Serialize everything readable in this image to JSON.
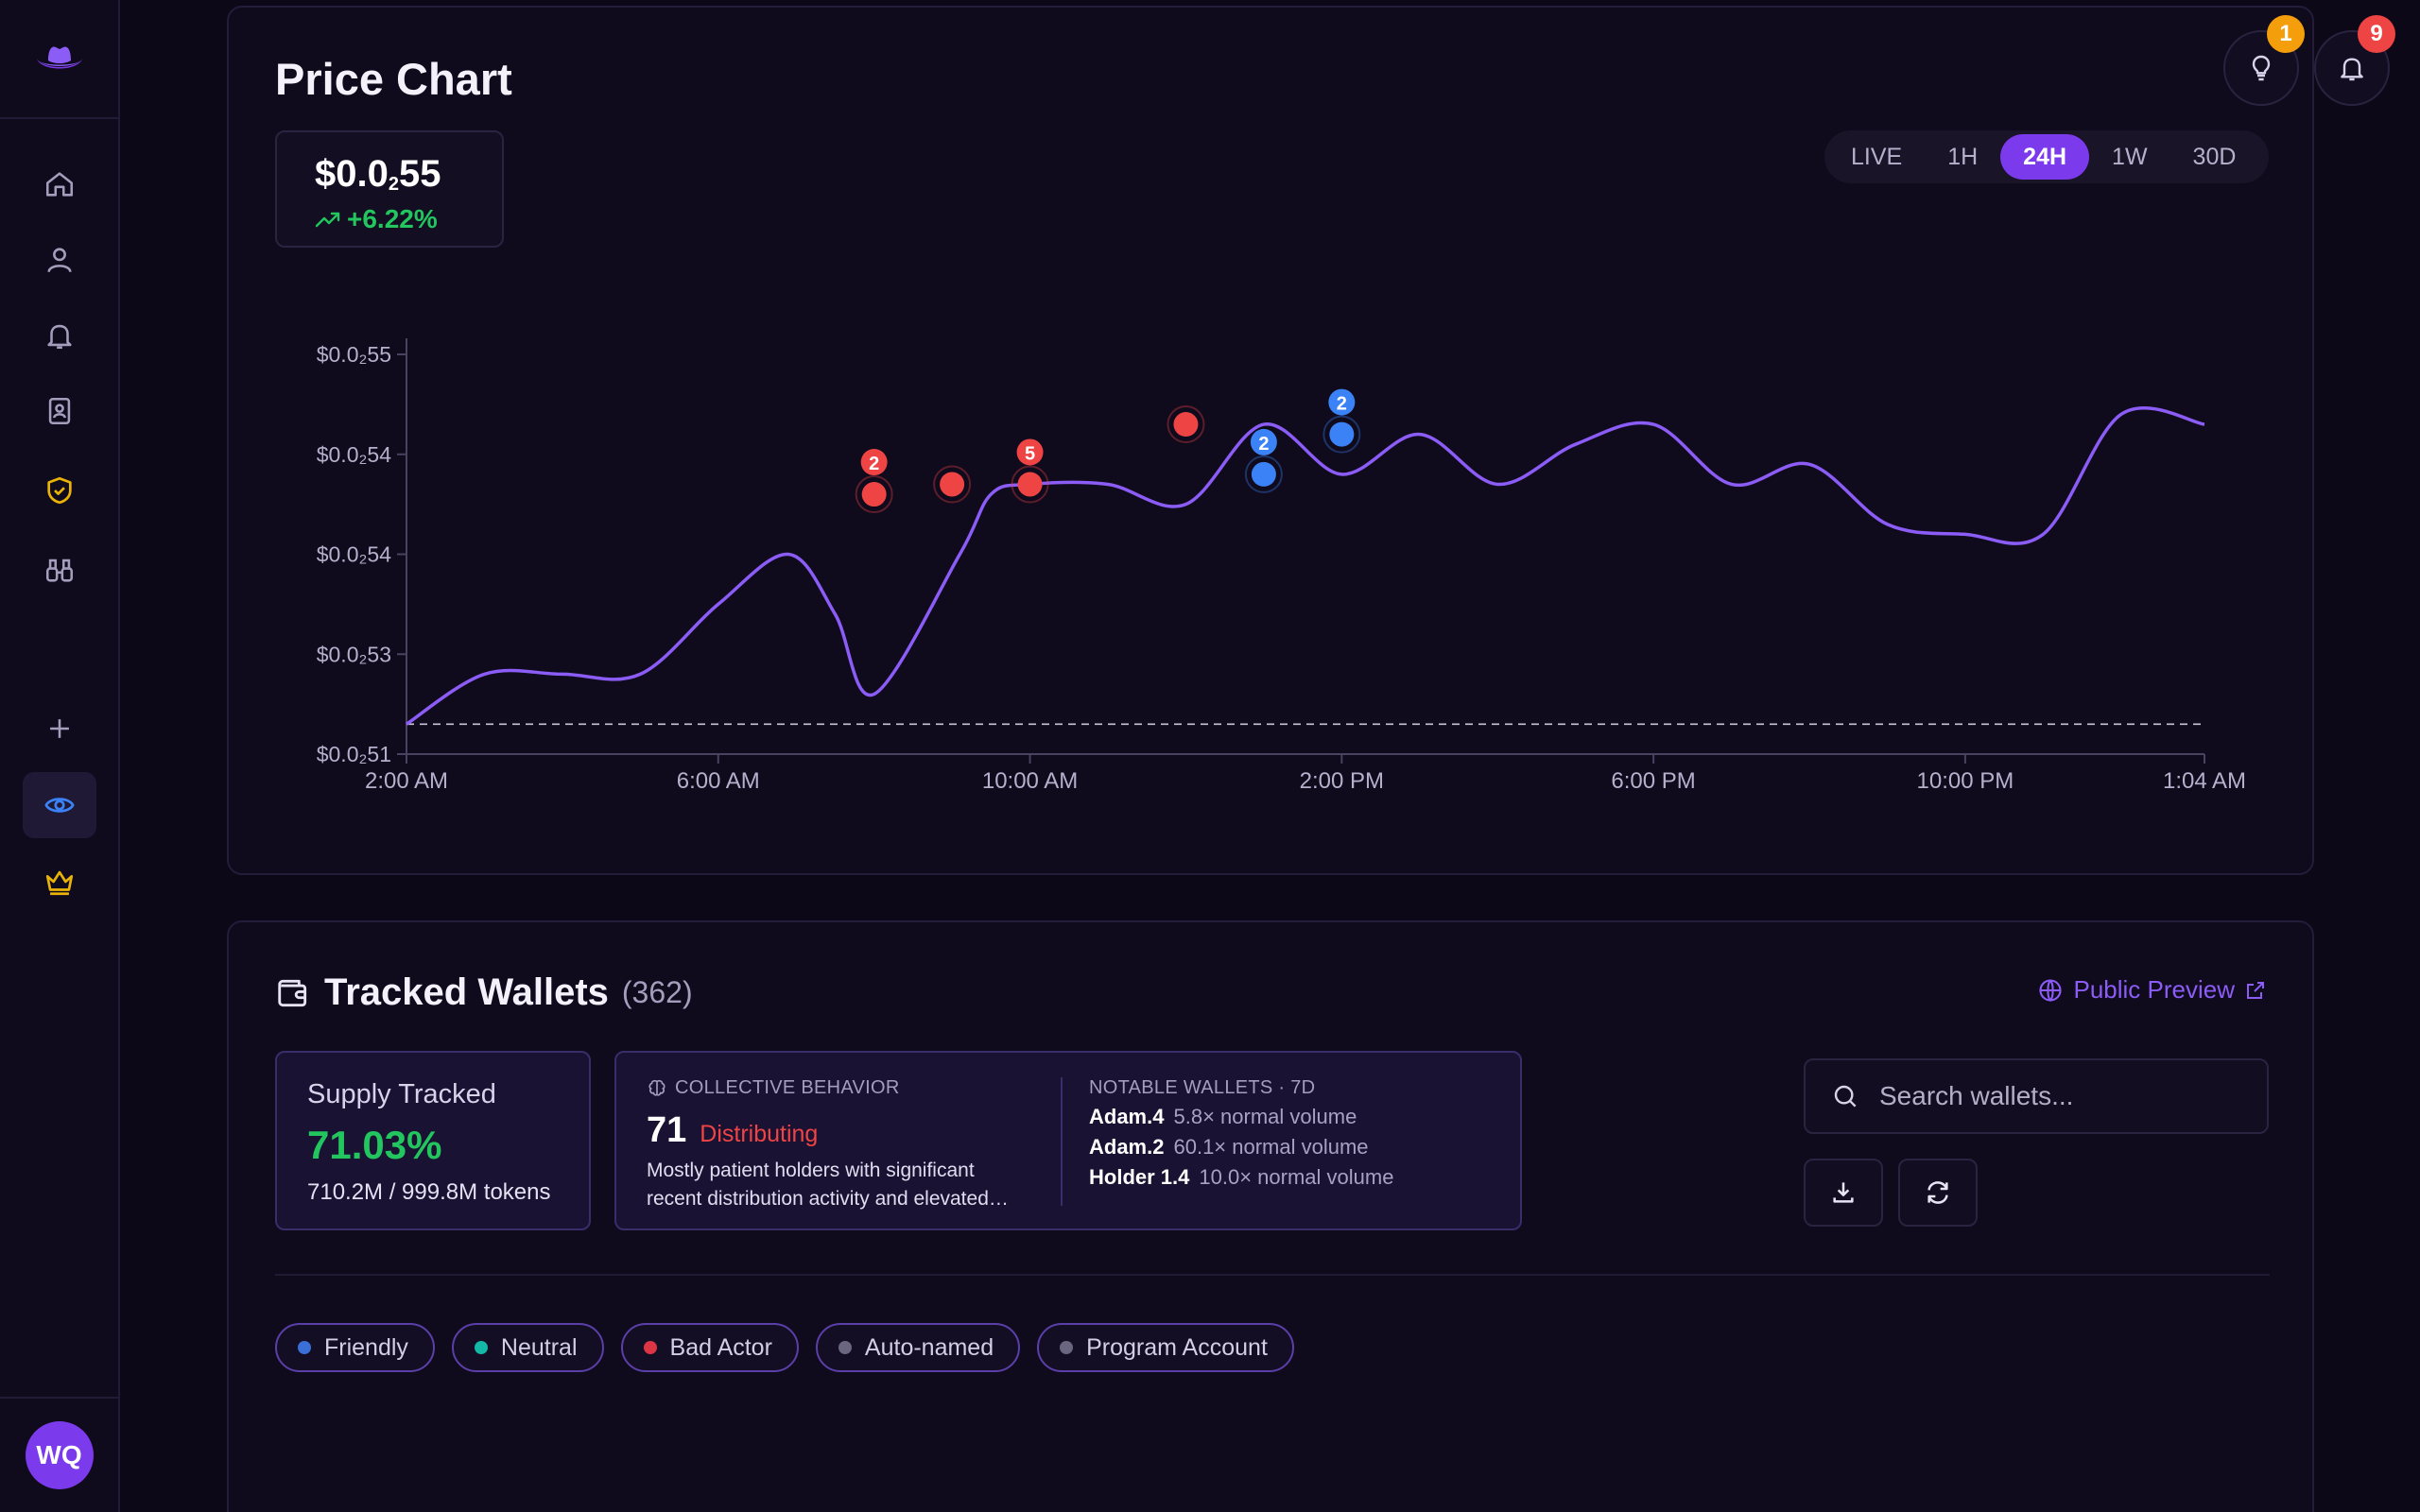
{
  "sidebar": {
    "logo": "cowboy-hat-logo",
    "items": [
      {
        "name": "home",
        "icon": "home-icon"
      },
      {
        "name": "profile",
        "icon": "user-icon"
      },
      {
        "name": "alerts",
        "icon": "bell-icon"
      },
      {
        "name": "contacts",
        "icon": "contact-book-icon"
      },
      {
        "name": "security",
        "icon": "shield-check-icon"
      },
      {
        "name": "watch",
        "icon": "binoculars-icon"
      },
      {
        "name": "add",
        "icon": "plus-icon"
      },
      {
        "name": "tracking",
        "icon": "eye-icon",
        "active": true
      },
      {
        "name": "premium",
        "icon": "crown-icon"
      }
    ],
    "avatar_initials": "WQ"
  },
  "header": {
    "tips_badge": "1",
    "notifications_badge": "9"
  },
  "price_chart": {
    "title": "Price Chart",
    "price_prefix": "$0.0",
    "price_sub": "2",
    "price_suffix": "55",
    "change": "+6.22%",
    "timeframes": [
      "LIVE",
      "1H",
      "24H",
      "1W",
      "30D"
    ],
    "active_timeframe": "24H"
  },
  "chart_data": {
    "type": "line",
    "x_ticks": [
      "2:00 AM",
      "6:00 AM",
      "10:00 AM",
      "2:00 PM",
      "6:00 PM",
      "10:00 PM",
      "1:04 AM"
    ],
    "y_ticks": [
      "$0.0₂55",
      "$0.0₂54",
      "$0.0₂54",
      "$0.0₂53",
      "$0.0₂51"
    ],
    "y_tick_values": [
      0.00555,
      0.00545,
      0.00535,
      0.00525,
      0.00515
    ],
    "ylim": [
      0.00515,
      0.005585
    ],
    "xlim_hours": [
      0,
      23.07
    ],
    "baseline": 0.00518,
    "series": [
      {
        "color": "#8b5cf6",
        "x": [
          0,
          1,
          2,
          3,
          4,
          4.9,
          5.5,
          6,
          7.1,
          7.5,
          8,
          9,
          10,
          11,
          12,
          13,
          14,
          15,
          16,
          17,
          18,
          19,
          20,
          21,
          22,
          23.07
        ],
        "y": [
          0.00518,
          0.00523,
          0.00523,
          0.00523,
          0.0053,
          0.00535,
          0.00529,
          0.00521,
          0.00535,
          0.00541,
          0.00542,
          0.00542,
          0.0054,
          0.00548,
          0.00543,
          0.00547,
          0.00542,
          0.00546,
          0.00548,
          0.00542,
          0.00544,
          0.00538,
          0.00537,
          0.00537,
          0.00549,
          0.00548
        ]
      }
    ],
    "markers": [
      {
        "x": 6,
        "y": 0.00541,
        "color": "#ef4444",
        "count": "2"
      },
      {
        "x": 7,
        "y": 0.00542,
        "color": "#ef4444",
        "count": ""
      },
      {
        "x": 8,
        "y": 0.00542,
        "color": "#ef4444",
        "count": "5"
      },
      {
        "x": 10,
        "y": 0.00548,
        "color": "#ef4444",
        "count": ""
      },
      {
        "x": 11,
        "y": 0.00543,
        "color": "#3b82f6",
        "count": "2"
      },
      {
        "x": 12,
        "y": 0.00547,
        "color": "#3b82f6",
        "count": "2"
      }
    ]
  },
  "wallets": {
    "title": "Tracked Wallets",
    "count": "(362)",
    "public_preview": "Public Preview",
    "supply_label": "Supply Tracked",
    "supply_pct": "71.03%",
    "supply_tokens": "710.2M / 999.8M tokens",
    "behavior_label": "COLLECTIVE BEHAVIOR",
    "behavior_score": "71",
    "behavior_status": "Distributing",
    "behavior_desc_1": "Mostly patient holders with significant",
    "behavior_desc_2": "recent distribution activity and elevated…",
    "notable_label": "NOTABLE WALLETS · 7D",
    "notable": [
      {
        "name": "Adam.4",
        "detail": "5.8× normal volume"
      },
      {
        "name": "Adam.2",
        "detail": "60.1× normal volume"
      },
      {
        "name": "Holder 1.4",
        "detail": "10.0× normal volume"
      }
    ],
    "search_placeholder": "Search wallets...",
    "filters": [
      {
        "label": "Friendly",
        "color": "#3b6fd8"
      },
      {
        "label": "Neutral",
        "color": "#14b8a6"
      },
      {
        "label": "Bad Actor",
        "color": "#dc3545"
      },
      {
        "label": "Auto-named",
        "color": "#6b6680"
      },
      {
        "label": "Program Account",
        "color": "#6b6680"
      }
    ]
  }
}
